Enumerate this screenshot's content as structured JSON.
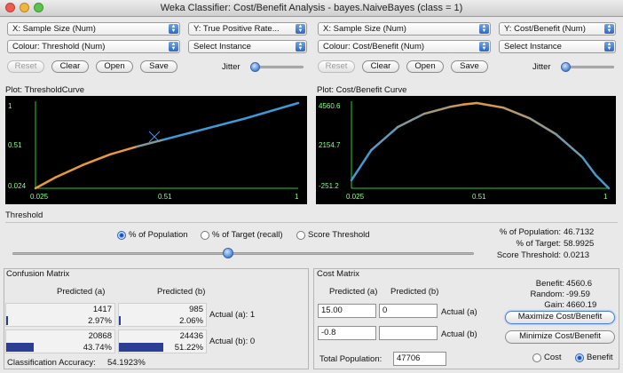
{
  "window": {
    "title": "Weka Classifier: Cost/Benefit Analysis - bayes.NaiveBayes  (class = 1)"
  },
  "left": {
    "x_axis_combo": "X: Sample Size (Num)",
    "y_axis_combo": "Y: True Positive Rate...",
    "colour_combo": "Colour: Threshold (Num)",
    "instance_combo": "Select Instance",
    "reset": "Reset",
    "clear": "Clear",
    "open": "Open",
    "save": "Save",
    "jitter": "Jitter",
    "plot_title": "Plot: ThresholdCurve",
    "y_ticks": [
      "1",
      "0.51",
      "0.024"
    ],
    "x_ticks": [
      "0.025",
      "0.51",
      "1"
    ]
  },
  "right": {
    "x_axis_combo": "X: Sample Size (Num)",
    "y_axis_combo": "Y: Cost/Benefit (Num)",
    "colour_combo": "Colour: Cost/Benefit (Num)",
    "instance_combo": "Select Instance",
    "reset": "Reset",
    "clear": "Clear",
    "open": "Open",
    "save": "Save",
    "jitter": "Jitter",
    "plot_title": "Plot: Cost/Benefit Curve",
    "y_ticks": [
      "4560.6",
      "2154.7",
      "-251.2"
    ],
    "x_ticks": [
      "0.025",
      "0.51",
      "1"
    ]
  },
  "chart_data": [
    {
      "type": "line",
      "title": "Plot: ThresholdCurve",
      "xlabel": "Sample Size",
      "ylabel": "True Positive Rate",
      "colour": "Threshold",
      "xlim": [
        0.025,
        1
      ],
      "ylim": [
        0.024,
        1
      ],
      "x": [
        0.025,
        0.1,
        0.2,
        0.3,
        0.4,
        0.5,
        0.6,
        0.7,
        0.8,
        0.9,
        1.0
      ],
      "y": [
        0.024,
        0.15,
        0.29,
        0.41,
        0.5,
        0.58,
        0.66,
        0.74,
        0.82,
        0.91,
        1.0
      ]
    },
    {
      "type": "line",
      "title": "Plot: Cost/Benefit Curve",
      "xlabel": "Sample Size",
      "ylabel": "Cost/Benefit",
      "colour": "Cost/Benefit",
      "xlim": [
        0.025,
        1
      ],
      "ylim": [
        -251.2,
        4560.6
      ],
      "x": [
        0.025,
        0.1,
        0.2,
        0.3,
        0.4,
        0.45,
        0.5,
        0.6,
        0.7,
        0.8,
        0.9,
        0.95,
        1.0
      ],
      "y": [
        200,
        1900,
        3200,
        3950,
        4350,
        4480,
        4560.6,
        4300,
        3700,
        2800,
        1500,
        500,
        -251.2
      ]
    }
  ],
  "threshold": {
    "legend": "Threshold",
    "opt_population": "% of Population",
    "opt_target": "% of Target (recall)",
    "opt_score": "Score Threshold",
    "pop_label": "% of Population:",
    "pop_value": "46.7132",
    "target_label": "% of Target:",
    "target_value": "58.9925",
    "score_label": "Score Threshold:",
    "score_value": "0.0213",
    "slider_fraction": 0.467
  },
  "confusion": {
    "legend": "Confusion Matrix",
    "col_a": "Predicted (a)",
    "col_b": "Predicted (b)",
    "r1c1": "1417",
    "r1c1_pct": "2.97%",
    "r1c1_frac": 0.0297,
    "r1c2": "985",
    "r1c2_pct": "2.06%",
    "r1c2_frac": 0.0206,
    "r2c1": "20868",
    "r2c1_pct": "43.74%",
    "r2c1_frac": 0.4374,
    "r2c2": "24436",
    "r2c2_pct": "51.22%",
    "r2c2_frac": 0.5122,
    "row1": "Actual (a): 1",
    "row2": "Actual (b): 0",
    "accuracy_label": "Classification Accuracy:",
    "accuracy_value": "54.1923%"
  },
  "cost": {
    "legend": "Cost Matrix",
    "col_a": "Predicted (a)",
    "col_b": "Predicted (b)",
    "m11": "15.00",
    "m12": "0",
    "m21": "-0.8",
    "m22": "",
    "row1": "Actual (a)",
    "row2": "Actual (b)",
    "total_label": "Total Population:",
    "total_value": "47706",
    "benefit_label": "Benefit:",
    "benefit_value": "4560.6",
    "random_label": "Random:",
    "random_value": "-99.59",
    "gain_label": "Gain:",
    "gain_value": "4660.19",
    "maximize": "Maximize Cost/Benefit",
    "minimize": "Minimize Cost/Benefit",
    "opt_cost": "Cost",
    "opt_benefit": "Benefit"
  }
}
